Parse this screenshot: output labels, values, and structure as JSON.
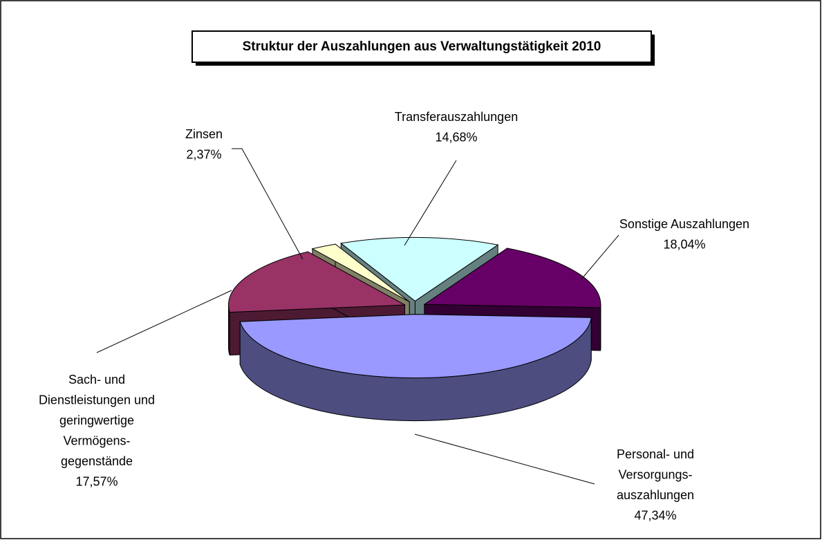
{
  "chart_data": {
    "type": "pie3d",
    "title": "Struktur der Auszahlungen aus Verwaltungstätigkeit 2010",
    "categories": [
      "Sonstige Auszahlungen",
      "Personal- und\nVersorgungs-\nauszahlungen",
      "Sach- und\nDienstleistungen und\ngeringwertige\nVermögens-\ngegenstände",
      "Zinsen",
      "Transferauszahlungen"
    ],
    "values": [
      18.04,
      47.34,
      17.57,
      2.37,
      14.68
    ],
    "value_labels": [
      "18,04%",
      "47,34%",
      "17,57%",
      "2,37%",
      "14,68%"
    ],
    "colors": [
      "#660066",
      "#9999ff",
      "#993366",
      "#ffffcc",
      "#ccffff"
    ]
  }
}
